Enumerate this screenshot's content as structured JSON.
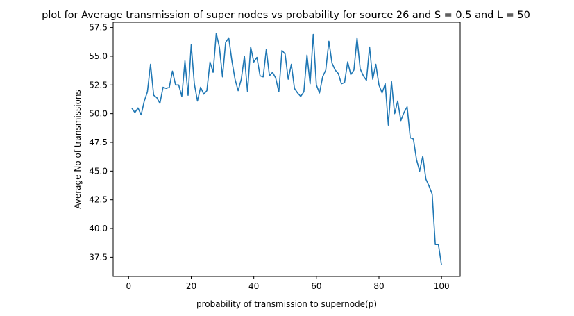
{
  "chart_data": {
    "type": "line",
    "title": "plot for Average transmission of super nodes vs probability for source 26 and S = 0.5 and L = 50",
    "xlabel": "probability of transmission to supernode(p)",
    "ylabel": "Average No of transmissions",
    "xlim": [
      -4.95,
      105.95
    ],
    "ylim": [
      35.83,
      57.96
    ],
    "xticks": [
      0,
      20,
      40,
      60,
      80,
      100
    ],
    "xtick_labels": [
      "0",
      "20",
      "40",
      "60",
      "80",
      "100"
    ],
    "yticks": [
      37.5,
      40.0,
      42.5,
      45.0,
      47.5,
      50.0,
      52.5,
      55.0,
      57.5
    ],
    "ytick_labels": [
      "37.5",
      "40.0",
      "42.5",
      "45.0",
      "47.5",
      "50.0",
      "52.5",
      "55.0",
      "57.5"
    ],
    "grid": false,
    "line_color": "#1f77b4",
    "series": [
      {
        "x": [
          1,
          2,
          3,
          4,
          5,
          6,
          7,
          8,
          9,
          10,
          11,
          12,
          13,
          14,
          15,
          16,
          17,
          18,
          19,
          20,
          21,
          22,
          23,
          24,
          25,
          26,
          27,
          28,
          29,
          30,
          31,
          32,
          33,
          34,
          35,
          36,
          37,
          38,
          39,
          40,
          41,
          42,
          43,
          44,
          45,
          46,
          47,
          48,
          49,
          50,
          51,
          52,
          53,
          54,
          55,
          56,
          57,
          58,
          59,
          60,
          61,
          62,
          63,
          64,
          65,
          66,
          67,
          68,
          69,
          70,
          71,
          72,
          73,
          74,
          75,
          76,
          77,
          78,
          79,
          80,
          81,
          82,
          83,
          84,
          85,
          86,
          87,
          88,
          89,
          90,
          91,
          92,
          93,
          94,
          95,
          96,
          97,
          98,
          99,
          100
        ],
        "values": [
          50.5,
          50.1,
          50.5,
          49.9,
          51.1,
          51.9,
          54.3,
          51.6,
          51.4,
          50.9,
          52.3,
          52.2,
          52.3,
          53.7,
          52.5,
          52.5,
          51.5,
          54.6,
          51.6,
          56.0,
          52.6,
          51.1,
          52.3,
          51.7,
          52.0,
          54.5,
          53.6,
          57.0,
          55.8,
          53.2,
          56.2,
          56.6,
          54.6,
          53.0,
          52.0,
          53.0,
          55.0,
          51.9,
          55.8,
          54.5,
          54.9,
          53.3,
          53.2,
          55.6,
          53.3,
          53.6,
          53.1,
          51.9,
          55.5,
          55.2,
          53.0,
          54.3,
          52.2,
          51.8,
          51.5,
          51.9,
          55.1,
          52.6,
          56.9,
          52.5,
          51.8,
          53.2,
          53.8,
          56.3,
          54.4,
          53.8,
          53.5,
          52.6,
          52.7,
          54.5,
          53.4,
          53.8,
          56.6,
          53.9,
          53.3,
          52.9,
          55.8,
          53.0,
          54.3,
          52.5,
          51.8,
          52.6,
          49.0,
          52.8,
          50.0,
          51.1,
          49.4,
          50.1,
          50.6,
          47.9,
          47.8,
          46.0,
          45.0,
          46.3,
          44.3,
          43.7,
          43.0,
          38.6,
          38.6,
          36.8
        ]
      }
    ]
  }
}
